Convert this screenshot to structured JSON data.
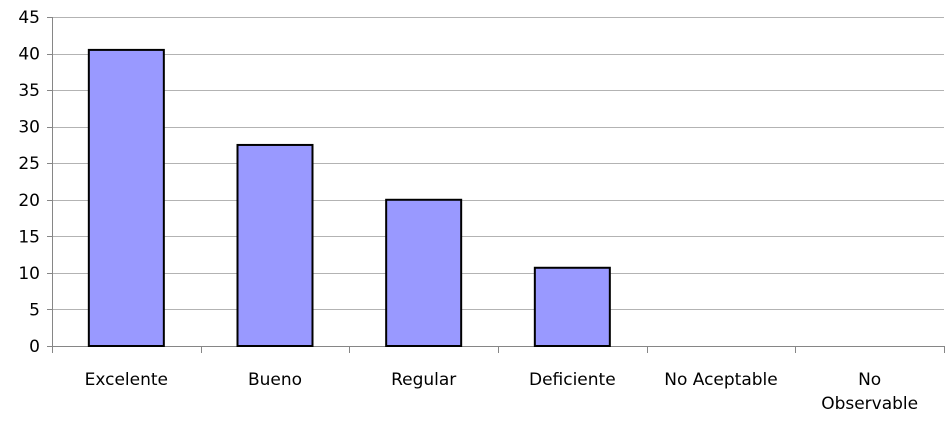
{
  "chart_data": {
    "type": "bar",
    "categories": [
      "Excelente",
      "Bueno",
      "Regular",
      "Deficiente",
      "No Aceptable",
      "No Observable"
    ],
    "category_lines": [
      [
        "Excelente"
      ],
      [
        "Bueno"
      ],
      [
        "Regular"
      ],
      [
        "Deficiente"
      ],
      [
        "No Aceptable"
      ],
      [
        "No",
        "Observable"
      ]
    ],
    "values": [
      40.5,
      27.5,
      20,
      10.7,
      0,
      0
    ],
    "ylim": [
      0,
      45
    ],
    "yticks": [
      0,
      5,
      10,
      15,
      20,
      25,
      30,
      35,
      40,
      45
    ],
    "grid": true,
    "title": "",
    "xlabel": "",
    "ylabel": "",
    "colors": {
      "bar_fill": "#9999ff",
      "bar_stroke": "#000000",
      "grid": "#b3b3b3",
      "axis": "#868686"
    }
  }
}
